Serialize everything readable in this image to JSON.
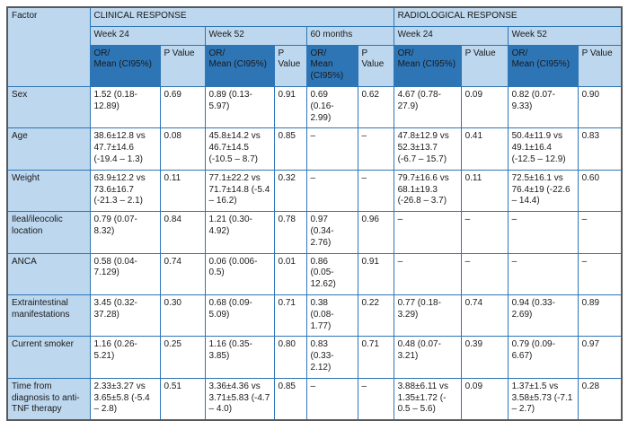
{
  "colors": {
    "header-dark": "#2E75B6",
    "header-light": "#BDD7EE",
    "border": "#2E75B6",
    "outer-border": "#595959",
    "group-text": "#1F4E79"
  },
  "table": {
    "factor_header": "Factor",
    "group_headers": [
      "CLINICAL RESPONSE",
      "RADIOLOGICAL RESPONSE"
    ],
    "time_headers": [
      "Week 24",
      "Week 52",
      "60 months",
      "Week 24",
      "Week 52"
    ],
    "or_label": "OR/\nMean (CI95%)",
    "p_label": "P Value",
    "rows": [
      {
        "factor": "Sex",
        "cells": [
          "1.52 (0.18-12.89)",
          "0.69",
          "0.89 (0.13-5.97)",
          "0.91",
          "0.69 (0.16-2.99)",
          "0.62",
          "4.67 (0.78-27.9)",
          "0.09",
          "0.82 (0.07-9.33)",
          "0.90"
        ]
      },
      {
        "factor": "Age",
        "cells": [
          "38.6±12.8 vs 47.7±14.6 (-19.4 – 1.3)",
          "0.08",
          "45.8±14.2 vs 46.7±14.5 (-10.5 – 8.7)",
          "0.85",
          "–",
          "–",
          "47.8±12.9 vs 52.3±13.7 (-6.7 – 15.7)",
          "0.41",
          "50.4±11.9 vs 49.1±16.4 (-12.5 – 12.9)",
          "0.83"
        ]
      },
      {
        "factor": "Weight",
        "cells": [
          "63.9±12.2 vs 73.6±16.7 (-21.3 – 2.1)",
          "0.11",
          "77.1±22.2 vs 71.7±14.8 (-5.4 – 16.2)",
          "0.32",
          "–",
          "–",
          "79.7±16.6 vs 68.1±19.3 (-26.8 – 3.7)",
          "0.11",
          "72.5±16.1 vs 76.4±19 (-22.6 – 14.4)",
          "0.60"
        ]
      },
      {
        "factor": "Ileal/ileocolic location",
        "cells": [
          "0.79 (0.07-8.32)",
          "0.84",
          "1.21 (0.30-4.92)",
          "0.78",
          "0.97 (0.34-2.76)",
          "0.96",
          "–",
          "–",
          "–",
          "–"
        ]
      },
      {
        "factor": "ANCA",
        "cells": [
          "0.58 (0.04-7.129)",
          "0.74",
          "0.06 (0.006-0.5)",
          "0.01",
          "0.86 (0.05-12.62)",
          "0.91",
          "–",
          "–",
          "–",
          "–"
        ]
      },
      {
        "factor": "Extraintestinal manifestations",
        "cells": [
          "3.45 (0.32-37.28)",
          "0.30",
          "0.68 (0.09-5.09)",
          "0.71",
          "0.38 (0.08-1.77)",
          "0.22",
          "0.77 (0.18-3.29)",
          "0.74",
          "0.94 (0.33-2.69)",
          "0.89"
        ]
      },
      {
        "factor": "Current smoker",
        "cells": [
          "1.16 (0.26-5.21)",
          "0.25",
          "1.16 (0.35-3.85)",
          "0.80",
          "0.83 (0.33-2.12)",
          "0.71",
          "0.48 (0.07-3.21)",
          "0.39",
          "0.79 (0.09-6.67)",
          "0.97"
        ]
      },
      {
        "factor": "Time from diagnosis to anti-TNF therapy",
        "cells": [
          "2.33±3.27 vs 3.65±5.8 (-5.4 – 2.8)",
          "0.51",
          "3.36±4.36 vs 3.71±5.83 (-4.7 – 4.0)",
          "0.85",
          "–",
          "–",
          "3.88±6.11 vs 1.35±1.72 (- 0.5 – 5.6)",
          "0.09",
          "1.37±1.5 vs 3.58±5.73 (-7.1 – 2.7)",
          "0.28"
        ]
      }
    ]
  }
}
